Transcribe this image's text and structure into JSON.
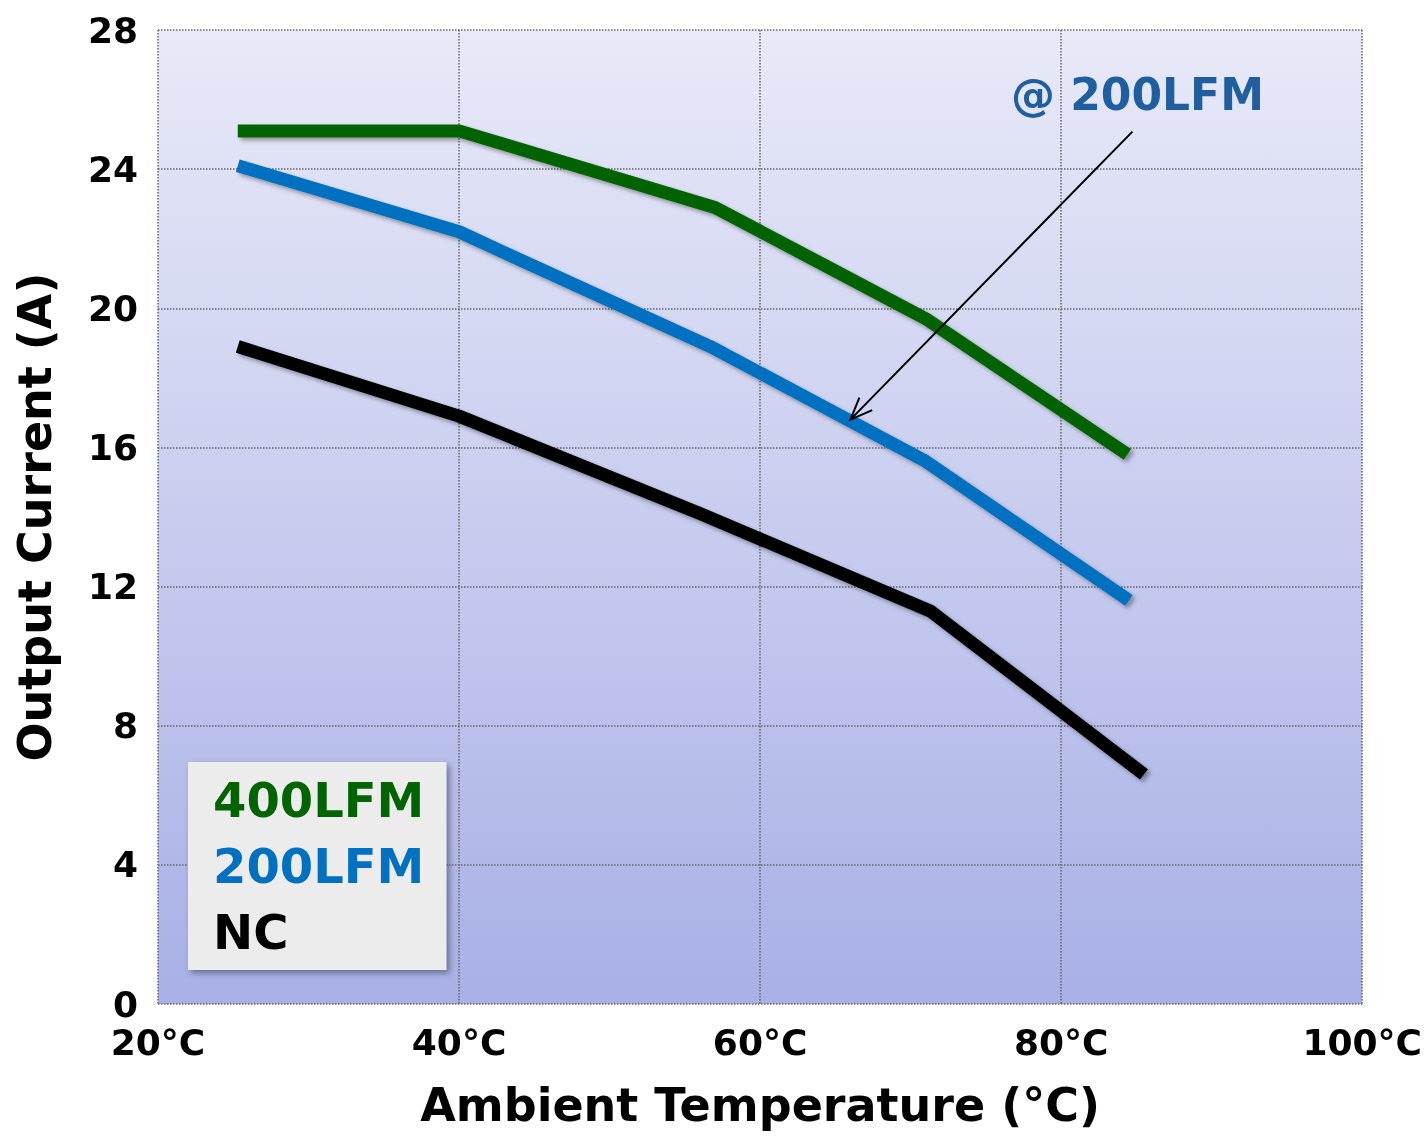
{
  "chart_data": {
    "type": "line",
    "xlabel": "Ambient Temperature (°C)",
    "ylabel": "Output Current (A)",
    "xlim": [
      20,
      100
    ],
    "ylim": [
      0,
      28
    ],
    "xticks": [
      {
        "value": 20,
        "label": "20°C"
      },
      {
        "value": 40,
        "label": "40°C"
      },
      {
        "value": 60,
        "label": "60°C"
      },
      {
        "value": 80,
        "label": "80°C"
      },
      {
        "value": 100,
        "label": "100°C"
      }
    ],
    "yticks": [
      0,
      4,
      8,
      12,
      16,
      20,
      24,
      28
    ],
    "grid": true,
    "legend": "bottom left",
    "marker": "none",
    "line_style": "solid",
    "series": [
      {
        "name": "400LFM",
        "color": "#006400",
        "x": [
          25.3,
          40,
          57,
          71,
          84.4
        ],
        "values": [
          25.1,
          25.1,
          22.9,
          19.7,
          15.8
        ]
      },
      {
        "name": "200LFM",
        "color": "#0070c0",
        "x": [
          25.3,
          40,
          42.5,
          56.7,
          71,
          84.5
        ],
        "values": [
          24.1,
          22.2,
          21.7,
          18.9,
          15.6,
          11.6
        ]
      },
      {
        "name": "NC",
        "color": "#000000",
        "x": [
          25.3,
          40,
          56,
          71.3,
          85.5
        ],
        "values": [
          18.9,
          16.9,
          14.1,
          11.3,
          6.6
        ]
      }
    ],
    "annotations": [
      {
        "text": "@ 200LFM",
        "x": 66,
        "y": 16.8
      }
    ]
  }
}
